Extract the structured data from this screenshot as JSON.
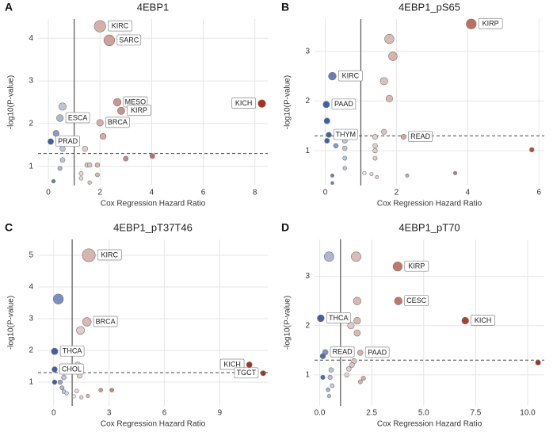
{
  "chart_data": [
    {
      "type": "scatter",
      "panel": "A",
      "title": "4EBP1",
      "x_label": "Cox Regression Hazard Ratio",
      "y_label": "-log10(P-value)",
      "x": [
        2.0,
        2.36,
        2.67,
        2.82,
        2.0,
        8.27,
        0.45,
        0.09,
        0.55,
        0.3,
        0.55,
        0.55,
        0.45,
        0.2,
        1.42,
        2.12,
        3.0,
        4.03,
        1.5,
        1.6,
        1.9,
        1.27,
        1.27,
        1.9,
        1.6
      ],
      "values": [
        4.28,
        3.95,
        2.5,
        2.3,
        2.02,
        2.47,
        2.13,
        1.58,
        2.4,
        1.77,
        1.41,
        1.15,
        0.95,
        0.65,
        1.41,
        1.7,
        1.18,
        1.24,
        1.03,
        1.03,
        1.03,
        0.83,
        0.72,
        0.8,
        0.62
      ],
      "point_labels": [
        "KIRC",
        "SARC",
        "MESO",
        "KIRP",
        "BRCA",
        "KICH",
        "ESCA",
        "PRAD",
        null,
        null,
        null,
        null,
        null,
        null,
        null,
        null,
        null,
        null,
        null,
        null,
        null,
        null,
        null,
        null,
        null
      ],
      "xlim": [
        -0.4,
        8.5
      ],
      "ylim": [
        0.55,
        4.45
      ],
      "xticks": [
        0,
        2,
        4,
        6,
        8
      ],
      "yticks": [
        1,
        2,
        3,
        4
      ],
      "vline": 1,
      "hline": 1.3,
      "grid": true,
      "colors": {
        "low": "#3f5fa8",
        "mid": "#eeeeee",
        "high": "#a8321f"
      }
    },
    {
      "type": "scatter",
      "panel": "B",
      "title": "4EBP1_pS65",
      "x_label": "Cox Regression Hazard Ratio",
      "y_label": "-log10(P-value)",
      "x": [
        4.1,
        1.8,
        1.9,
        1.65,
        1.8,
        0.2,
        0.03,
        0.05,
        0.1,
        0.05,
        0.3,
        0.55,
        0.55,
        0.55,
        0.55,
        1.65,
        1.4,
        1.4,
        1.4,
        1.4,
        2.2,
        5.8,
        1.1,
        1.3,
        1.45,
        0.2,
        0.2,
        2.3,
        3.65
      ],
      "values": [
        3.55,
        3.25,
        2.9,
        2.4,
        2.05,
        2.5,
        1.93,
        1.6,
        1.32,
        1.2,
        1.1,
        1.2,
        1.05,
        0.85,
        0.65,
        1.38,
        1.28,
        1.1,
        1.0,
        0.85,
        1.28,
        1.02,
        0.55,
        0.53,
        0.47,
        0.5,
        0.35,
        0.5,
        0.55
      ],
      "point_labels": [
        "KIRP",
        null,
        null,
        null,
        null,
        "KIRC",
        "PAAD",
        null,
        "THYM",
        null,
        null,
        null,
        null,
        null,
        null,
        null,
        null,
        null,
        null,
        null,
        "READ",
        null,
        null,
        null,
        null,
        null,
        null,
        null,
        null
      ],
      "xlim": [
        -0.3,
        6.15
      ],
      "ylim": [
        0.3,
        3.65
      ],
      "xticks": [
        0,
        2,
        4,
        6
      ],
      "yticks": [
        1,
        2,
        3
      ],
      "vline": 1,
      "hline": 1.3,
      "grid": true,
      "colors": {
        "low": "#3f5fa8",
        "mid": "#eeeeee",
        "high": "#a8321f"
      }
    },
    {
      "type": "scatter",
      "panel": "C",
      "title": "4EBP1_pT37T46",
      "x_label": "Cox Regression Hazard Ratio",
      "y_label": "-log10(P-value)",
      "x": [
        1.9,
        0.25,
        1.8,
        1.45,
        0.05,
        0.05,
        0.05,
        10.6,
        11.35,
        1.3,
        1.1,
        1.4,
        0.45,
        0.55,
        0.35,
        0.45,
        0.55,
        0.7,
        1.25,
        1.1,
        1.5,
        1.85,
        2.55,
        3.15
      ],
      "values": [
        5.0,
        3.62,
        2.9,
        2.63,
        1.97,
        1.4,
        1.0,
        1.55,
        1.28,
        1.55,
        1.4,
        1.2,
        1.35,
        1.15,
        1.0,
        0.82,
        0.7,
        0.65,
        0.72,
        0.55,
        0.52,
        0.56,
        0.75,
        0.75
      ],
      "point_labels": [
        "KIRC",
        null,
        "BRCA",
        null,
        "THCA",
        "CHOL",
        null,
        "KICH",
        "TGCT",
        null,
        null,
        null,
        null,
        null,
        null,
        null,
        null,
        null,
        null,
        null,
        null,
        null,
        null,
        null
      ],
      "xlim": [
        -0.85,
        11.6
      ],
      "ylim": [
        0.25,
        5.5
      ],
      "xticks": [
        0,
        3,
        6,
        9
      ],
      "yticks": [
        1,
        2,
        3,
        4,
        5
      ],
      "vline": 1,
      "hline": 1.3,
      "grid": true,
      "colors": {
        "low": "#3f5fa8",
        "mid": "#eeeeee",
        "high": "#a8321f"
      }
    },
    {
      "type": "scatter",
      "panel": "D",
      "title": "4EBP1_pT70",
      "x_label": "Cox Regression Hazard Ratio",
      "y_label": "-log10(P-value)",
      "x": [
        0.45,
        1.75,
        3.75,
        3.78,
        7.0,
        0.05,
        1.8,
        1.8,
        1.5,
        1.8,
        0.27,
        0.15,
        1.95,
        1.65,
        1.55,
        1.4,
        1.3,
        0.55,
        0.5,
        0.15,
        0.6,
        0.4,
        0.45,
        2.1,
        1.95,
        10.5
      ],
      "values": [
        3.4,
        3.4,
        3.2,
        2.5,
        2.1,
        2.15,
        2.5,
        2.1,
        2.0,
        1.85,
        1.46,
        1.38,
        1.45,
        1.28,
        1.2,
        1.12,
        1.0,
        1.1,
        0.95,
        0.95,
        0.78,
        0.7,
        0.57,
        0.93,
        0.86,
        1.25
      ],
      "point_labels": [
        null,
        null,
        "KIRP",
        "CESC",
        "KICH",
        "THCA",
        null,
        null,
        null,
        null,
        "READ",
        null,
        "PAAD",
        null,
        null,
        null,
        null,
        null,
        null,
        null,
        null,
        null,
        null,
        null,
        null,
        null
      ],
      "xlim": [
        -0.25,
        10.8
      ],
      "ylim": [
        0.37,
        3.75
      ],
      "xticks": [
        {
          "value": 0,
          "label": "0.0"
        },
        {
          "value": 2.5,
          "label": "2.5"
        },
        {
          "value": 5,
          "label": "5.0"
        },
        {
          "value": 7.5,
          "label": "7.5"
        },
        {
          "value": 10,
          "label": "10.0"
        }
      ],
      "yticks": [
        1,
        2,
        3
      ],
      "vline": 1,
      "hline": 1.3,
      "grid": true,
      "colors": {
        "low": "#3f5fa8",
        "mid": "#eeeeee",
        "high": "#a8321f"
      }
    }
  ]
}
